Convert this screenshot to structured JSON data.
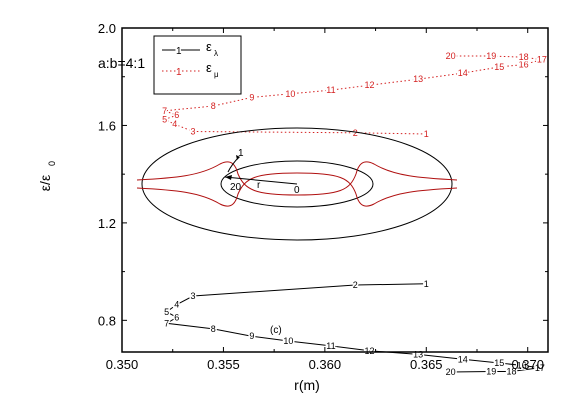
{
  "chart_data": {
    "type": "line",
    "title": "",
    "xlabel": "r(m)",
    "ylabel": "ε/ε₀",
    "ylabel_main": "ε/ε",
    "ylabel_sub": "0",
    "xlim": [
      0.35,
      0.371
    ],
    "ylim": [
      0.67,
      2.0
    ],
    "xticks": [
      "0.350",
      "0.355",
      "0.360",
      "0.365",
      "0.370"
    ],
    "yticks": [
      "0.8",
      "1.2",
      "1.6",
      "2.0"
    ],
    "annotation_ratio": "a:b=4:1",
    "annotation_panel": "(c)",
    "legend": [
      {
        "marker": "1",
        "label_main": "ε",
        "label_sub": "λ",
        "style": "solid",
        "color": "#000000"
      },
      {
        "marker": "1",
        "label_main": "ε",
        "label_sub": "μ",
        "style": "dotted",
        "color": "#d42020"
      }
    ],
    "series": [
      {
        "name": "ελ",
        "color": "#000000",
        "style": "solid",
        "points": [
          {
            "label": "1",
            "x": 0.365,
            "y": 0.95
          },
          {
            "label": "2",
            "x": 0.3615,
            "y": 0.945
          },
          {
            "label": "3",
            "x": 0.3535,
            "y": 0.9
          },
          {
            "label": "4",
            "x": 0.3527,
            "y": 0.865
          },
          {
            "label": "5",
            "x": 0.3522,
            "y": 0.835
          },
          {
            "label": "6",
            "x": 0.3527,
            "y": 0.812
          },
          {
            "label": "7",
            "x": 0.3522,
            "y": 0.788
          },
          {
            "label": "8",
            "x": 0.3545,
            "y": 0.765
          },
          {
            "label": "9",
            "x": 0.3564,
            "y": 0.735
          },
          {
            "label": "10",
            "x": 0.3582,
            "y": 0.715
          },
          {
            "label": "11",
            "x": 0.3603,
            "y": 0.695
          },
          {
            "label": "12",
            "x": 0.3622,
            "y": 0.675
          },
          {
            "label": "13",
            "x": 0.3646,
            "y": 0.66
          },
          {
            "label": "14",
            "x": 0.3668,
            "y": 0.64
          },
          {
            "label": "15",
            "x": 0.3686,
            "y": 0.625
          },
          {
            "label": "16",
            "x": 0.3697,
            "y": 0.615
          },
          {
            "label": "17",
            "x": 0.3706,
            "y": 0.605
          },
          {
            "label": "18",
            "x": 0.3692,
            "y": 0.59
          },
          {
            "label": "19",
            "x": 0.3682,
            "y": 0.59
          },
          {
            "label": "20",
            "x": 0.3662,
            "y": 0.588
          }
        ]
      },
      {
        "name": "εμ",
        "color": "#d42020",
        "style": "dotted",
        "points": [
          {
            "label": "1",
            "x": 0.365,
            "y": 1.565
          },
          {
            "label": "2",
            "x": 0.3615,
            "y": 1.57
          },
          {
            "label": "3",
            "x": 0.3535,
            "y": 1.575
          },
          {
            "label": "4",
            "x": 0.3526,
            "y": 1.605
          },
          {
            "label": "5",
            "x": 0.3521,
            "y": 1.625
          },
          {
            "label": "6",
            "x": 0.3527,
            "y": 1.642
          },
          {
            "label": "7",
            "x": 0.3521,
            "y": 1.66
          },
          {
            "label": "8",
            "x": 0.3545,
            "y": 1.68
          },
          {
            "label": "9",
            "x": 0.3564,
            "y": 1.715
          },
          {
            "label": "10",
            "x": 0.3583,
            "y": 1.73
          },
          {
            "label": "11",
            "x": 0.3603,
            "y": 1.745
          },
          {
            "label": "12",
            "x": 0.3622,
            "y": 1.765
          },
          {
            "label": "13",
            "x": 0.3646,
            "y": 1.79
          },
          {
            "label": "14",
            "x": 0.3668,
            "y": 1.815
          },
          {
            "label": "15",
            "x": 0.3686,
            "y": 1.84
          },
          {
            "label": "16",
            "x": 0.3698,
            "y": 1.85
          },
          {
            "label": "17",
            "x": 0.3707,
            "y": 1.87
          },
          {
            "label": "18",
            "x": 0.3698,
            "y": 1.88
          },
          {
            "label": "19",
            "x": 0.3682,
            "y": 1.885
          },
          {
            "label": "20",
            "x": 0.3662,
            "y": 1.885
          }
        ]
      }
    ],
    "inset": {
      "shape": "ellipse",
      "color": "#000000",
      "inner_color": "#b01010",
      "center_point": "0",
      "start_point": "1",
      "end_point": "20",
      "radius_label": "r"
    }
  }
}
